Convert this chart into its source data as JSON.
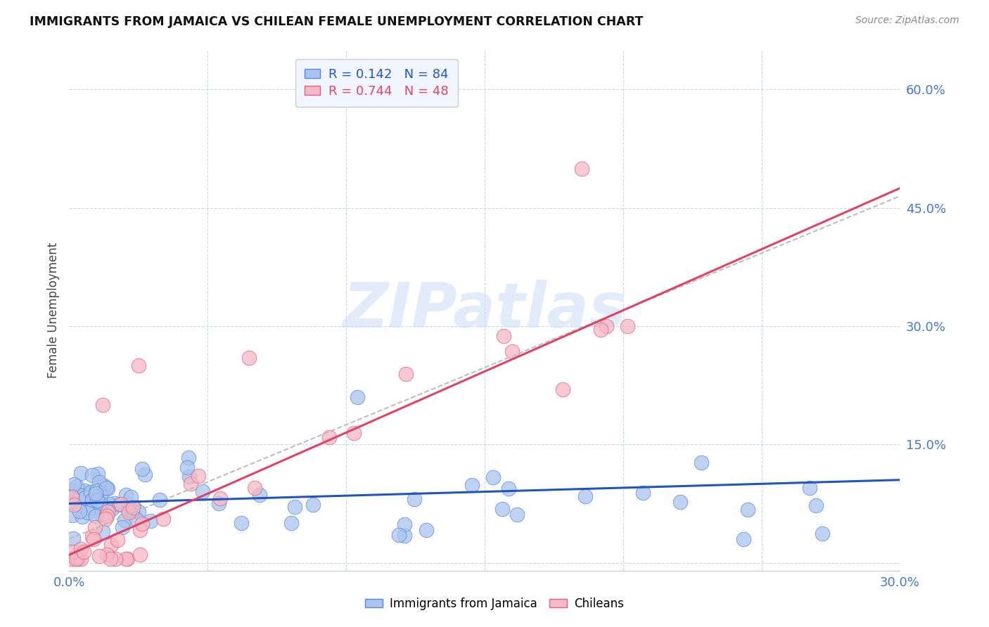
{
  "title": "IMMIGRANTS FROM JAMAICA VS CHILEAN FEMALE UNEMPLOYMENT CORRELATION CHART",
  "source": "Source: ZipAtlas.com",
  "ylabel": "Female Unemployment",
  "xlim": [
    0.0,
    0.3
  ],
  "ylim": [
    -0.01,
    0.65
  ],
  "blue_R": 0.142,
  "blue_N": 84,
  "pink_R": 0.744,
  "pink_N": 48,
  "blue_color": "#aac4ee",
  "pink_color": "#f5b8c4",
  "blue_edge_color": "#5588dd",
  "pink_edge_color": "#e06080",
  "blue_line_color": "#2255bb",
  "pink_line_color": "#dd4466",
  "gray_dash_color": "#bbbbbb",
  "background_color": "#ffffff",
  "grid_color": "#c8d8f0",
  "watermark_color": "#d0dff5",
  "tick_color": "#4477cc",
  "title_color": "#111111",
  "source_color": "#888888",
  "ylabel_color": "#444444"
}
